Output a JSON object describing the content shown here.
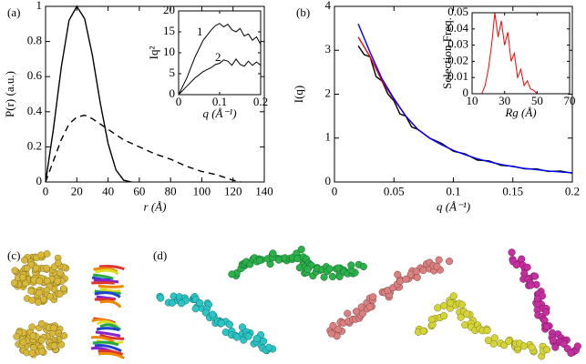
{
  "chart_data": [
    {
      "type": "line",
      "panel_label": "(a)",
      "x_label": "r (Å)",
      "y_label": "P(r) (a.u.)",
      "xlim": [
        0,
        140
      ],
      "xticks": [
        0,
        20,
        40,
        60,
        80,
        100,
        120,
        140
      ],
      "ylim": [
        0,
        1
      ],
      "yticks": [
        0,
        0.2,
        0.4,
        0.6,
        0.8,
        1
      ],
      "series": [
        {
          "color": "#000000",
          "style": "solid",
          "x": [
            0,
            5,
            10,
            15,
            20,
            25,
            30,
            35,
            40,
            45,
            50,
            55
          ],
          "values": [
            0,
            0.3,
            0.65,
            0.92,
            1.0,
            0.93,
            0.72,
            0.45,
            0.22,
            0.07,
            0.01,
            0
          ]
        },
        {
          "color": "#000000",
          "style": "dashed",
          "x": [
            0,
            5,
            10,
            15,
            20,
            25,
            30,
            40,
            50,
            60,
            70,
            80,
            90,
            100,
            110,
            120,
            125
          ],
          "values": [
            0,
            0.12,
            0.24,
            0.33,
            0.37,
            0.38,
            0.36,
            0.3,
            0.24,
            0.2,
            0.16,
            0.13,
            0.09,
            0.06,
            0.04,
            0.01,
            0
          ]
        }
      ]
    },
    {
      "type": "line",
      "x_label": "q (Å⁻¹)",
      "y_label": "Iq²",
      "annotations": [
        "1",
        "2"
      ],
      "xlim": [
        0,
        0.2
      ],
      "xticks": [
        0,
        0.1,
        0.2
      ],
      "ylim": [
        0,
        20
      ],
      "yticks": [
        0,
        5,
        10,
        15,
        20
      ],
      "series": [
        {
          "color": "#000000",
          "style": "solid",
          "x": [
            0,
            0.02,
            0.04,
            0.06,
            0.08,
            0.09,
            0.1,
            0.11,
            0.12,
            0.13,
            0.14,
            0.15,
            0.16,
            0.17,
            0.18,
            0.19,
            0.2
          ],
          "values": [
            0,
            4,
            9,
            13,
            15.5,
            16.5,
            17,
            16.2,
            16.8,
            15.5,
            15,
            15.8,
            14,
            14.5,
            13,
            13.8,
            12
          ]
        },
        {
          "color": "#000000",
          "style": "solid",
          "x": [
            0,
            0.02,
            0.04,
            0.06,
            0.08,
            0.09,
            0.1,
            0.11,
            0.12,
            0.13,
            0.14,
            0.15,
            0.16,
            0.17,
            0.18,
            0.19,
            0.2
          ],
          "values": [
            0,
            2,
            4,
            5.5,
            6.5,
            7.2,
            7.5,
            8.3,
            8,
            7,
            8.5,
            7.2,
            6.8,
            8,
            7,
            7.8,
            7
          ]
        }
      ]
    },
    {
      "type": "line",
      "panel_label": "(b)",
      "x_label": "q (Å⁻¹)",
      "y_label": "I(q)",
      "xlim": [
        0,
        0.2
      ],
      "xticks": [
        0,
        0.05,
        0.1,
        0.15,
        0.2
      ],
      "ylim": [
        0,
        4
      ],
      "yticks": [
        0,
        1,
        2,
        3,
        4
      ],
      "series": [
        {
          "color": "#000000",
          "style": "solid",
          "x": [
            0.02,
            0.025,
            0.03,
            0.035,
            0.04,
            0.045,
            0.05,
            0.055,
            0.06,
            0.065,
            0.07,
            0.08,
            0.09,
            0.1,
            0.11,
            0.12,
            0.13,
            0.14,
            0.15,
            0.16,
            0.17,
            0.18,
            0.19,
            0.2
          ],
          "values": [
            3.1,
            2.9,
            2.85,
            2.4,
            2.3,
            2.0,
            1.85,
            1.55,
            1.5,
            1.25,
            1.2,
            1.0,
            0.88,
            0.7,
            0.64,
            0.5,
            0.48,
            0.38,
            0.36,
            0.3,
            0.3,
            0.24,
            0.25,
            0.2
          ]
        },
        {
          "color": "#ff0000",
          "style": "solid",
          "x": [
            0.02,
            0.03,
            0.04,
            0.05,
            0.06,
            0.07,
            0.08,
            0.09,
            0.1
          ],
          "values": [
            3.3,
            2.85,
            2.3,
            1.88,
            1.5,
            1.2,
            1.0,
            0.85,
            0.72
          ]
        },
        {
          "color": "#0000ff",
          "style": "solid",
          "x": [
            0.02,
            0.03,
            0.04,
            0.05,
            0.06,
            0.07,
            0.08,
            0.09,
            0.1,
            0.11,
            0.12,
            0.13,
            0.14,
            0.15,
            0.16,
            0.17,
            0.18,
            0.19,
            0.2
          ],
          "values": [
            3.6,
            2.95,
            2.35,
            1.9,
            1.5,
            1.2,
            1.0,
            0.85,
            0.72,
            0.62,
            0.53,
            0.46,
            0.4,
            0.35,
            0.31,
            0.28,
            0.25,
            0.23,
            0.21
          ]
        }
      ]
    },
    {
      "type": "line",
      "x_label": "Rg (Å)",
      "y_label": "Selection Freq.",
      "xlim": [
        10,
        70
      ],
      "xticks": [
        10,
        30,
        50,
        70
      ],
      "ylim": [
        0,
        0.05
      ],
      "yticks": [
        0,
        0.01,
        0.02,
        0.03,
        0.04,
        0.05
      ],
      "series": [
        {
          "color": "#ff0000",
          "style": "solid",
          "x": [
            16,
            18,
            20,
            22,
            24,
            26,
            28,
            30,
            32,
            34,
            36,
            38,
            40,
            42,
            44,
            46,
            48,
            50,
            52
          ],
          "values": [
            0,
            0.005,
            0.015,
            0.03,
            0.05,
            0.035,
            0.045,
            0.03,
            0.038,
            0.02,
            0.025,
            0.01,
            0.015,
            0.005,
            0.008,
            0.003,
            0.002,
            0,
            0
          ]
        }
      ]
    }
  ],
  "panels": [
    "(c)",
    "(d)"
  ]
}
